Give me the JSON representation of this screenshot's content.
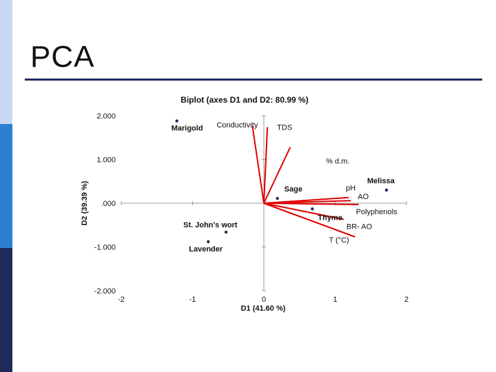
{
  "slide": {
    "title": "PCA"
  },
  "colors": {
    "accent": "#1f2a5a",
    "vector": "#e00000",
    "point": "#1f2a5a"
  },
  "chart_data": {
    "type": "scatter",
    "title": "Biplot (axes D1 and D2: 80.99 %)",
    "xlabel": "D1 (41.60 %)",
    "ylabel": "D2 (39.39 %)",
    "xlim": [
      -2,
      2
    ],
    "ylim": [
      -2,
      2
    ],
    "x_ticks": [
      "-2",
      "-1",
      "0",
      "1",
      "2"
    ],
    "y_ticks": [
      "2.000",
      "1.000",
      ".000",
      "-1.000",
      "-2.000"
    ],
    "observations": [
      {
        "label": "Marigold",
        "x": -1.22,
        "y": 1.88
      },
      {
        "label": "Melissa",
        "x": 1.72,
        "y": 0.3
      },
      {
        "label": "Sage",
        "x": 0.19,
        "y": 0.11
      },
      {
        "label": "Thyme",
        "x": 0.68,
        "y": -0.13
      },
      {
        "label": "St. John's wort",
        "x": -0.53,
        "y": -0.66
      },
      {
        "label": "Lavender",
        "x": -0.78,
        "y": -0.88
      }
    ],
    "variables": [
      {
        "label": "Conductivity",
        "x": -0.16,
        "y": 1.76
      },
      {
        "label": "TDS",
        "x": 0.05,
        "y": 1.74
      },
      {
        "label": "% d.m.",
        "x": 0.37,
        "y": 1.28
      },
      {
        "label": "pH",
        "x": 1.19,
        "y": 0.13
      },
      {
        "label": "AO",
        "x": 1.22,
        "y": 0.06
      },
      {
        "label": "Polyphenols",
        "x": 1.33,
        "y": -0.03
      },
      {
        "label": "BR- AO",
        "x": 1.12,
        "y": -0.37
      },
      {
        "label": "T (°C)",
        "x": 1.28,
        "y": -0.77
      }
    ]
  }
}
